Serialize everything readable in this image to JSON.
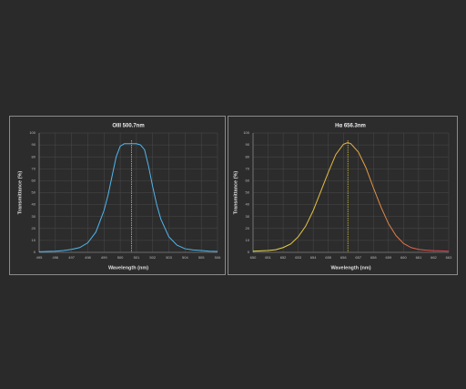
{
  "chart_data": [
    {
      "type": "line",
      "title": "OIII 500.7nm",
      "x_label": "Wavelength (nm)",
      "y_label": "Transmittance (%)",
      "x": [
        495,
        495.5,
        496,
        496.5,
        497,
        497.5,
        498,
        498.5,
        499,
        499.25,
        499.5,
        499.75,
        500,
        500.25,
        500.5,
        500.75,
        501,
        501.25,
        501.5,
        501.75,
        502,
        502.25,
        502.5,
        503,
        503.5,
        504,
        504.5,
        505,
        505.5,
        506
      ],
      "series": [
        {
          "colors": [
            "#4fb6ec",
            "#4fb6ec"
          ],
          "values": [
            0.5,
            0.8,
            1,
            1.5,
            2.5,
            4,
            8,
            17,
            35,
            48,
            64,
            80,
            89,
            91,
            91,
            91,
            91,
            90,
            86,
            72,
            55,
            40,
            28,
            13,
            6,
            3,
            2,
            1.5,
            1,
            0.8
          ]
        }
      ],
      "marker_line": {
        "x": 500.7,
        "color": "#e8d84a"
      },
      "xlim": [
        495,
        506
      ],
      "xticks": [
        495,
        496,
        497,
        498,
        499,
        500,
        501,
        502,
        503,
        504,
        505,
        506
      ],
      "ylim": [
        0,
        100
      ],
      "yticks": [
        0,
        10,
        20,
        30,
        40,
        50,
        60,
        70,
        80,
        90,
        100
      ],
      "grid": true
    },
    {
      "type": "line",
      "title": "Hα 656.3nm",
      "x_label": "Wavelength (nm)",
      "y_label": "Transmittance (%)",
      "x": [
        650,
        650.5,
        651,
        651.5,
        652,
        652.5,
        653,
        653.5,
        654,
        654.5,
        655,
        655.5,
        656,
        656.3,
        656.5,
        657,
        657.5,
        658,
        658.5,
        659,
        659.5,
        660,
        660.5,
        661,
        661.5,
        662,
        662.5,
        663
      ],
      "series": [
        {
          "colors": [
            "#e6dc4a",
            "#e6b040",
            "#dc3a50"
          ],
          "values": [
            1,
            1.2,
            1.5,
            2.2,
            4,
            7,
            13,
            22,
            35,
            51,
            67,
            82,
            90.5,
            92,
            91,
            84,
            71,
            54,
            38,
            24,
            14,
            7.5,
            4,
            2.5,
            1.8,
            1.4,
            1.2,
            1
          ]
        }
      ],
      "marker_line": {
        "x": 656.3,
        "color": "#e8d84a"
      },
      "xlim": [
        650,
        663
      ],
      "xticks": [
        650,
        651,
        652,
        653,
        654,
        655,
        656,
        657,
        658,
        659,
        660,
        661,
        662,
        663
      ],
      "ylim": [
        0,
        100
      ],
      "yticks": [
        0,
        10,
        20,
        30,
        40,
        50,
        60,
        70,
        80,
        90,
        100
      ],
      "grid": true
    }
  ]
}
